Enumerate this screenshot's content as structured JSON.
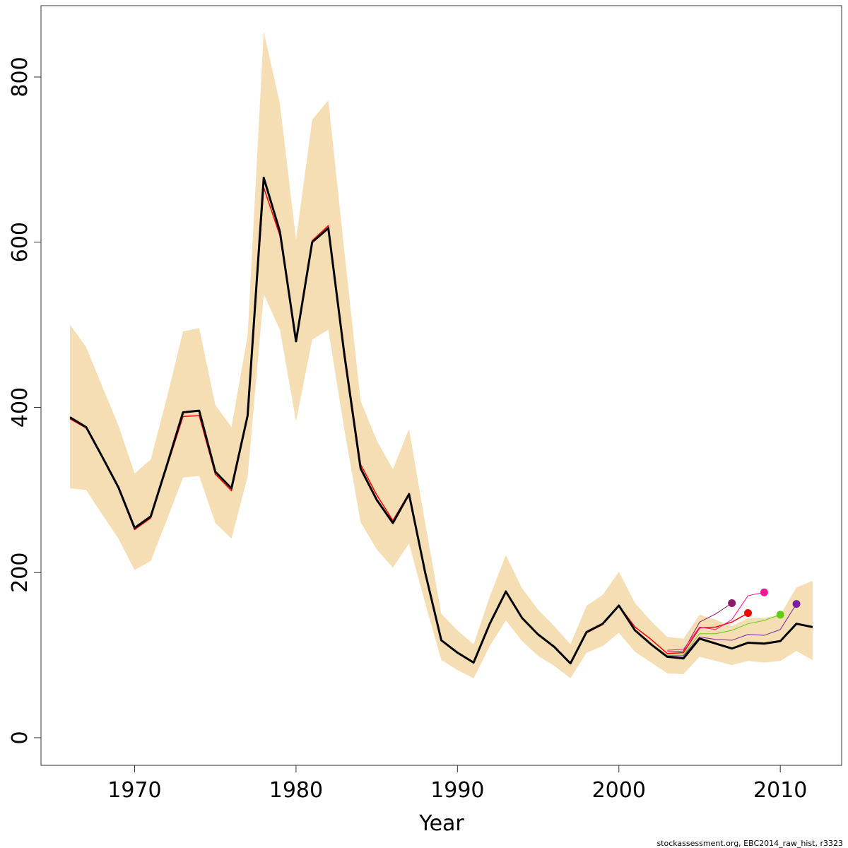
{
  "chart_data": {
    "type": "line",
    "x_label": "Year",
    "caption": "stockassessment.org, EBC2014_raw_hist, r3323",
    "x": [
      1966,
      1967,
      1968,
      1969,
      1970,
      1971,
      1972,
      1973,
      1974,
      1975,
      1976,
      1977,
      1978,
      1979,
      1980,
      1981,
      1982,
      1983,
      1984,
      1985,
      1986,
      1987,
      1988,
      1989,
      1990,
      1991,
      1992,
      1993,
      1994,
      1995,
      1996,
      1997,
      1998,
      1999,
      2000,
      2001,
      2002,
      2003,
      2004,
      2005,
      2006,
      2007,
      2008,
      2009,
      2010,
      2011,
      2012
    ],
    "xlim": [
      1964.2,
      2013.8
    ],
    "xticks": [
      1970,
      1980,
      1990,
      2000,
      2010
    ],
    "ylim": [
      -33.4,
      886.4
    ],
    "yticks": [
      0,
      200,
      400,
      600,
      800
    ],
    "band": {
      "color": "#f5deb3",
      "lower": [
        302,
        300,
        270,
        241,
        203,
        214,
        264,
        315,
        317,
        260,
        241,
        316,
        537,
        494,
        383,
        482,
        494,
        372,
        261,
        228,
        206,
        235,
        163,
        94,
        82,
        72,
        111,
        142,
        117,
        99,
        87,
        72,
        103,
        111,
        127,
        104,
        91,
        78,
        77,
        98,
        93,
        88,
        93,
        91,
        93,
        105,
        94
      ],
      "upper": [
        500,
        473,
        425,
        378,
        320,
        337,
        412,
        492,
        496,
        403,
        376,
        487,
        855,
        768,
        603,
        748,
        772,
        588,
        408,
        360,
        325,
        374,
        260,
        150,
        130,
        113,
        171,
        221,
        181,
        155,
        135,
        113,
        160,
        173,
        201,
        163,
        141,
        122,
        120,
        149,
        143,
        135,
        145,
        145,
        149,
        182,
        190
      ]
    },
    "series": [
      {
        "color": "#ff0000",
        "width": 1.5,
        "values": [
          386,
          375,
          339,
          302,
          252,
          266,
          328,
          389,
          390,
          319,
          299,
          388,
          666,
          608,
          481,
          602,
          620,
          468,
          331,
          294,
          263,
          296,
          201,
          118,
          103,
          91,
          139,
          178,
          146,
          125,
          110,
          90,
          127,
          137,
          160,
          134,
          119,
          102,
          103,
          133,
          134,
          140,
          151,
          null,
          null,
          null,
          null
        ]
      },
      {
        "color": "#8b1a6b",
        "width": 1,
        "values": [
          null,
          null,
          null,
          null,
          null,
          null,
          null,
          null,
          null,
          null,
          null,
          null,
          null,
          null,
          null,
          null,
          null,
          null,
          null,
          null,
          null,
          null,
          null,
          null,
          null,
          null,
          null,
          null,
          null,
          null,
          null,
          null,
          null,
          null,
          null,
          null,
          null,
          104,
          105,
          140,
          150,
          163,
          null,
          null,
          null,
          null,
          null
        ]
      },
      {
        "color": "#ff1493",
        "width": 1,
        "values": [
          null,
          null,
          null,
          null,
          null,
          null,
          null,
          null,
          null,
          null,
          null,
          null,
          null,
          null,
          null,
          null,
          null,
          null,
          null,
          null,
          null,
          null,
          null,
          null,
          null,
          null,
          null,
          null,
          null,
          null,
          null,
          null,
          null,
          null,
          null,
          null,
          null,
          106,
          107,
          134,
          131,
          143,
          172,
          176,
          null,
          null,
          null
        ]
      },
      {
        "color": "#66cc11",
        "width": 1,
        "values": [
          null,
          null,
          null,
          null,
          null,
          null,
          null,
          null,
          null,
          null,
          null,
          null,
          null,
          null,
          null,
          null,
          null,
          null,
          null,
          null,
          null,
          null,
          null,
          null,
          null,
          null,
          null,
          null,
          null,
          null,
          null,
          null,
          null,
          null,
          null,
          null,
          null,
          100,
          100,
          126,
          126,
          130,
          138,
          142,
          149,
          null,
          null
        ]
      },
      {
        "color": "#7a1fa2",
        "width": 1,
        "values": [
          null,
          null,
          null,
          null,
          null,
          null,
          null,
          null,
          null,
          null,
          null,
          null,
          null,
          null,
          null,
          null,
          null,
          null,
          null,
          null,
          null,
          null,
          null,
          null,
          null,
          null,
          null,
          null,
          null,
          null,
          null,
          null,
          null,
          null,
          null,
          null,
          null,
          99,
          99,
          122,
          119,
          118,
          125,
          124,
          131,
          162,
          null
        ]
      },
      {
        "color": "#000000",
        "width": 3,
        "values": [
          388,
          376,
          340,
          303,
          254,
          268,
          330,
          394,
          396,
          322,
          302,
          390,
          678,
          613,
          480,
          600,
          617,
          463,
          326,
          288,
          260,
          295,
          200,
          118,
          103,
          91,
          138,
          177,
          145,
          125,
          110,
          90,
          128,
          138,
          160,
          130,
          113,
          98,
          96,
          120,
          114,
          108,
          115,
          114,
          117,
          138,
          134
        ]
      }
    ]
  }
}
